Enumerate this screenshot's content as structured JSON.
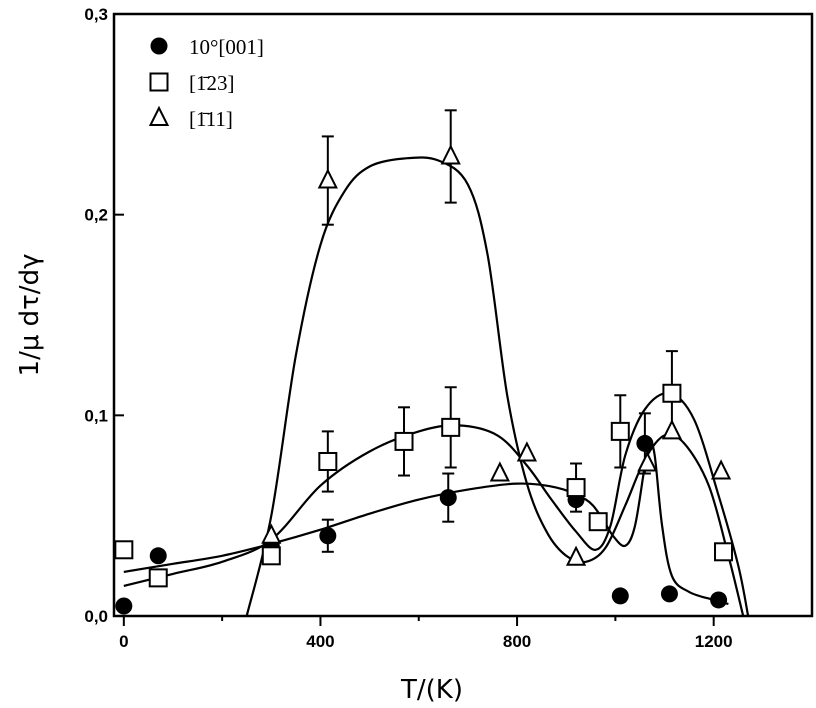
{
  "chart_data": {
    "type": "scatter",
    "title": "",
    "xlabel": "T/(K)",
    "ylabel": "1/μ dτ/dγ",
    "xlim": [
      -20,
      1400
    ],
    "ylim": [
      0,
      0.3
    ],
    "x_ticks": [
      0,
      400,
      800,
      1200
    ],
    "x_tick_labels": [
      "0",
      "400",
      "800",
      "1200"
    ],
    "y_ticks": [
      0,
      0.1,
      0.2,
      0.3
    ],
    "y_tick_labels": [
      "0,0",
      "0,1",
      "0,2",
      "0,3"
    ],
    "grid": false,
    "legend_position": "top-left",
    "series": [
      {
        "name": "10°[001]",
        "marker": "filled-circle",
        "points": [
          {
            "x": 0,
            "y": 0.005
          },
          {
            "x": 70,
            "y": 0.03
          },
          {
            "x": 300,
            "y": 0.035
          },
          {
            "x": 415,
            "y": 0.04,
            "err": 0.008
          },
          {
            "x": 660,
            "y": 0.059,
            "err": 0.012
          },
          {
            "x": 920,
            "y": 0.058
          },
          {
            "x": 1010,
            "y": 0.01
          },
          {
            "x": 1060,
            "y": 0.086,
            "err": 0.015
          },
          {
            "x": 1110,
            "y": 0.011
          },
          {
            "x": 1210,
            "y": 0.008
          }
        ],
        "curve": [
          {
            "x": 0,
            "y": 0.022
          },
          {
            "x": 100,
            "y": 0.026
          },
          {
            "x": 200,
            "y": 0.03
          },
          {
            "x": 300,
            "y": 0.036
          },
          {
            "x": 400,
            "y": 0.043
          },
          {
            "x": 500,
            "y": 0.051
          },
          {
            "x": 600,
            "y": 0.058
          },
          {
            "x": 700,
            "y": 0.063
          },
          {
            "x": 800,
            "y": 0.066
          },
          {
            "x": 880,
            "y": 0.064
          },
          {
            "x": 940,
            "y": 0.058
          },
          {
            "x": 970,
            "y": 0.05
          },
          {
            "x": 995,
            "y": 0.04
          },
          {
            "x": 1020,
            "y": 0.035
          },
          {
            "x": 1040,
            "y": 0.045
          },
          {
            "x": 1060,
            "y": 0.075
          },
          {
            "x": 1070,
            "y": 0.086
          },
          {
            "x": 1080,
            "y": 0.08
          },
          {
            "x": 1095,
            "y": 0.045
          },
          {
            "x": 1115,
            "y": 0.02
          },
          {
            "x": 1150,
            "y": 0.012
          },
          {
            "x": 1200,
            "y": 0.008
          },
          {
            "x": 1230,
            "y": 0.006
          }
        ]
      },
      {
        "name": "[1̄23]",
        "marker": "open-square",
        "points": [
          {
            "x": 0,
            "y": 0.033
          },
          {
            "x": 70,
            "y": 0.019
          },
          {
            "x": 300,
            "y": 0.03
          },
          {
            "x": 415,
            "y": 0.077,
            "err": 0.015
          },
          {
            "x": 570,
            "y": 0.087,
            "err": 0.017
          },
          {
            "x": 665,
            "y": 0.094,
            "err": 0.02
          },
          {
            "x": 920,
            "y": 0.064,
            "err": 0.012
          },
          {
            "x": 965,
            "y": 0.047
          },
          {
            "x": 1010,
            "y": 0.092,
            "err": 0.018
          },
          {
            "x": 1115,
            "y": 0.111,
            "err": 0.021
          },
          {
            "x": 1220,
            "y": 0.032
          }
        ],
        "curve": [
          {
            "x": 0,
            "y": 0.015
          },
          {
            "x": 100,
            "y": 0.021
          },
          {
            "x": 200,
            "y": 0.027
          },
          {
            "x": 300,
            "y": 0.038
          },
          {
            "x": 400,
            "y": 0.065
          },
          {
            "x": 500,
            "y": 0.082
          },
          {
            "x": 600,
            "y": 0.092
          },
          {
            "x": 680,
            "y": 0.095
          },
          {
            "x": 760,
            "y": 0.09
          },
          {
            "x": 820,
            "y": 0.075
          },
          {
            "x": 870,
            "y": 0.058
          },
          {
            "x": 920,
            "y": 0.042
          },
          {
            "x": 960,
            "y": 0.033
          },
          {
            "x": 990,
            "y": 0.045
          },
          {
            "x": 1020,
            "y": 0.08
          },
          {
            "x": 1060,
            "y": 0.103
          },
          {
            "x": 1110,
            "y": 0.111
          },
          {
            "x": 1160,
            "y": 0.098
          },
          {
            "x": 1210,
            "y": 0.06
          },
          {
            "x": 1250,
            "y": 0.025
          },
          {
            "x": 1270,
            "y": 0.0
          }
        ]
      },
      {
        "name": "[1̄11]",
        "marker": "open-triangle",
        "points": [
          {
            "x": 300,
            "y": 0.04
          },
          {
            "x": 415,
            "y": 0.217,
            "err": 0.022
          },
          {
            "x": 665,
            "y": 0.229,
            "err": 0.023
          },
          {
            "x": 765,
            "y": 0.071
          },
          {
            "x": 820,
            "y": 0.081
          },
          {
            "x": 920,
            "y": 0.029
          },
          {
            "x": 1065,
            "y": 0.076
          },
          {
            "x": 1115,
            "y": 0.092
          },
          {
            "x": 1215,
            "y": 0.072
          }
        ],
        "curve": [
          {
            "x": 250,
            "y": 0.0
          },
          {
            "x": 300,
            "y": 0.05
          },
          {
            "x": 350,
            "y": 0.13
          },
          {
            "x": 400,
            "y": 0.185
          },
          {
            "x": 450,
            "y": 0.212
          },
          {
            "x": 500,
            "y": 0.224
          },
          {
            "x": 570,
            "y": 0.228
          },
          {
            "x": 640,
            "y": 0.227
          },
          {
            "x": 700,
            "y": 0.215
          },
          {
            "x": 740,
            "y": 0.18
          },
          {
            "x": 780,
            "y": 0.11
          },
          {
            "x": 820,
            "y": 0.066
          },
          {
            "x": 860,
            "y": 0.042
          },
          {
            "x": 900,
            "y": 0.03
          },
          {
            "x": 940,
            "y": 0.027
          },
          {
            "x": 980,
            "y": 0.034
          },
          {
            "x": 1020,
            "y": 0.055
          },
          {
            "x": 1060,
            "y": 0.078
          },
          {
            "x": 1100,
            "y": 0.09
          },
          {
            "x": 1140,
            "y": 0.086
          },
          {
            "x": 1190,
            "y": 0.065
          },
          {
            "x": 1230,
            "y": 0.03
          },
          {
            "x": 1260,
            "y": 0.0
          }
        ]
      }
    ]
  }
}
